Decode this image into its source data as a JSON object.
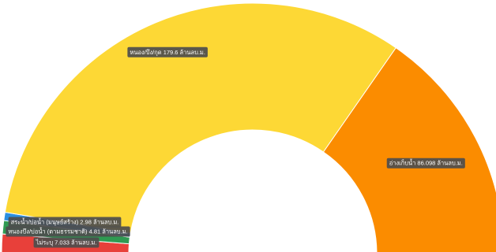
{
  "chart_data": {
    "type": "pie",
    "variant": "semi-donut",
    "unit": "ล้านลบ.ม.",
    "slices": [
      {
        "name": "ไม่ระบุ",
        "value": 7.033,
        "color": "#e8403a",
        "label": "ไม่ระบุ 7.033 ล้านลบ.ม."
      },
      {
        "name": "หนองบึงบึง (ตามธรรมชาติ)",
        "value": 4.81,
        "color": "#2f9a52",
        "label": "หนองบึง/บ่อน้ำ (ตามธรรมชาติ) 4.81 ล้านลบ.ม."
      },
      {
        "name": "สระน้ำ/บ่อน้ำ (มนุษย์สร้าง)",
        "value": 2.98,
        "color": "#2b8fe0",
        "label": "สระน้ำ/บ่อน้ำ (มนุษย์สร้าง) 2.98 ล้านลบ.ม."
      },
      {
        "name": "หนอง/บึง/กุด",
        "value": 179.6,
        "color": "#fdd835",
        "label": "หนอง/บึง/กุด 179.6 ล้านลบ.ม."
      },
      {
        "name": "อ่างเก็บน้ำ",
        "value": 86.098,
        "color": "#fb8c00",
        "label": "อ่างเก็บน้ำ 86.098 ล้านลบ.ม."
      }
    ]
  }
}
